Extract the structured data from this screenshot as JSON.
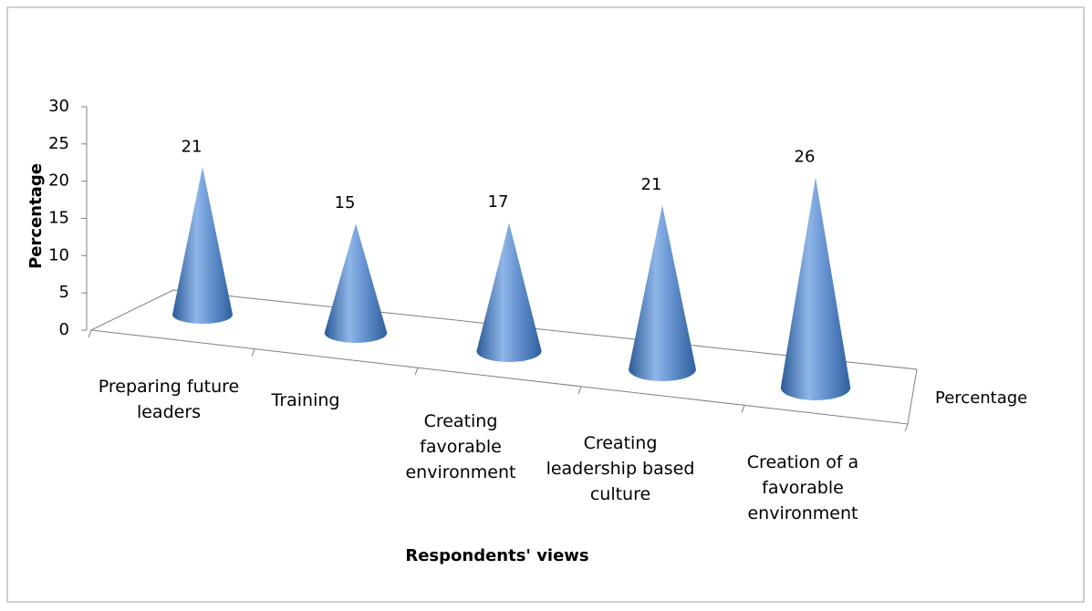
{
  "chart_data": {
    "type": "cone",
    "x_label": "Respondents' views",
    "y_label": "Percentage",
    "categories": [
      "Preparing future leaders",
      "Training",
      "Creating favorable environment",
      "Creating leadership based culture",
      "Creation of a favorable environment"
    ],
    "series": [
      {
        "name": "Percentage",
        "color": "#4f81bd",
        "values": [
          21,
          15,
          17,
          21,
          26
        ]
      }
    ],
    "ylim": [
      0,
      30
    ],
    "yticks": [
      0,
      5,
      10,
      15,
      20,
      25,
      30
    ]
  }
}
